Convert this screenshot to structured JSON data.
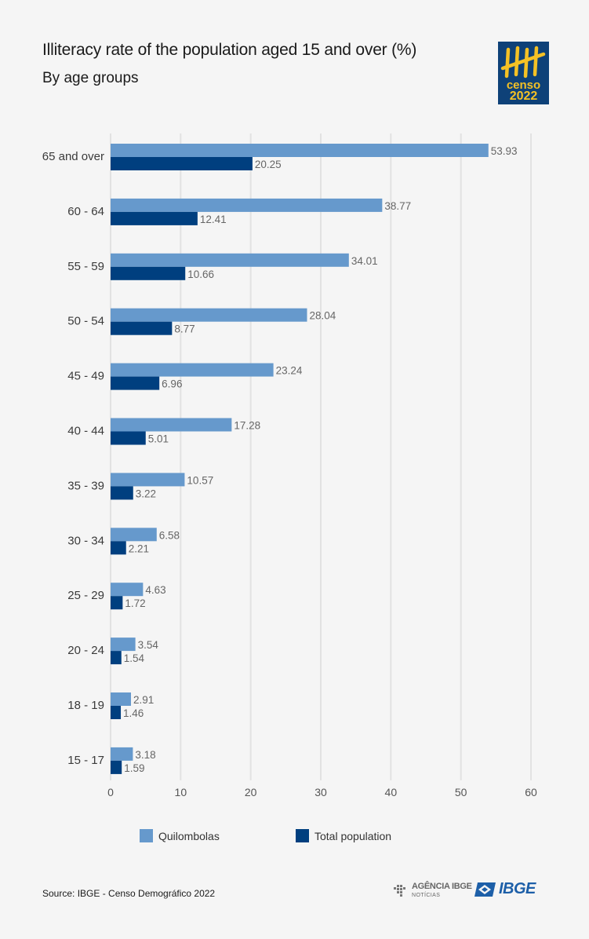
{
  "header": {
    "title": "Illiteracy rate of the population aged 15 and over (%)",
    "subtitle": "By age groups"
  },
  "logo": {
    "word": "censo",
    "year": "2022",
    "icon": "tally-marks-icon",
    "bg_color": "#0e4178",
    "accent_color": "#f4c125"
  },
  "chart_data": {
    "type": "bar",
    "orientation": "horizontal",
    "title": "Illiteracy rate of the population aged 15 and over (%)",
    "subtitle": "By age groups",
    "categories": [
      "65 and over",
      "60 - 64",
      "55 - 59",
      "50 - 54",
      "45 - 49",
      "40 - 44",
      "35 - 39",
      "30 - 34",
      "25 - 29",
      "20 - 24",
      "18 - 19",
      "15 - 17"
    ],
    "series": [
      {
        "name": "Quilombolas",
        "color": "#6699cc",
        "values": [
          53.93,
          38.77,
          34.01,
          28.04,
          23.24,
          17.28,
          10.57,
          6.58,
          4.63,
          3.54,
          2.91,
          3.18
        ],
        "labels": [
          "53.93",
          "38.77",
          "34.01",
          "28.04",
          "23.24",
          "17.28",
          "10.57",
          "6.58",
          "4.63",
          "3.54",
          "2.91",
          "3.18"
        ]
      },
      {
        "name": "Total population",
        "color": "#003f7f",
        "values": [
          20.25,
          12.41,
          10.66,
          8.77,
          6.96,
          5.01,
          3.22,
          2.21,
          1.72,
          1.54,
          1.46,
          1.59
        ],
        "labels": [
          "20.25",
          "12.41",
          "10.66",
          "8.77",
          "6.96",
          "5.01",
          "3.22",
          "2.21",
          "1.72",
          "1.54",
          "1.46",
          "1.59"
        ]
      }
    ],
    "xlim": [
      0,
      60
    ],
    "xticks": [
      "0",
      "10",
      "20",
      "30",
      "40",
      "50",
      "60"
    ],
    "grid": true,
    "legend_position": "bottom"
  },
  "footer": {
    "source": "Source: IBGE - Censo Demográfico 2022",
    "agencia_main": "AGÊNCIA IBGE",
    "agencia_sub": "NOTÍCIAS",
    "ibge": "IBGE"
  }
}
